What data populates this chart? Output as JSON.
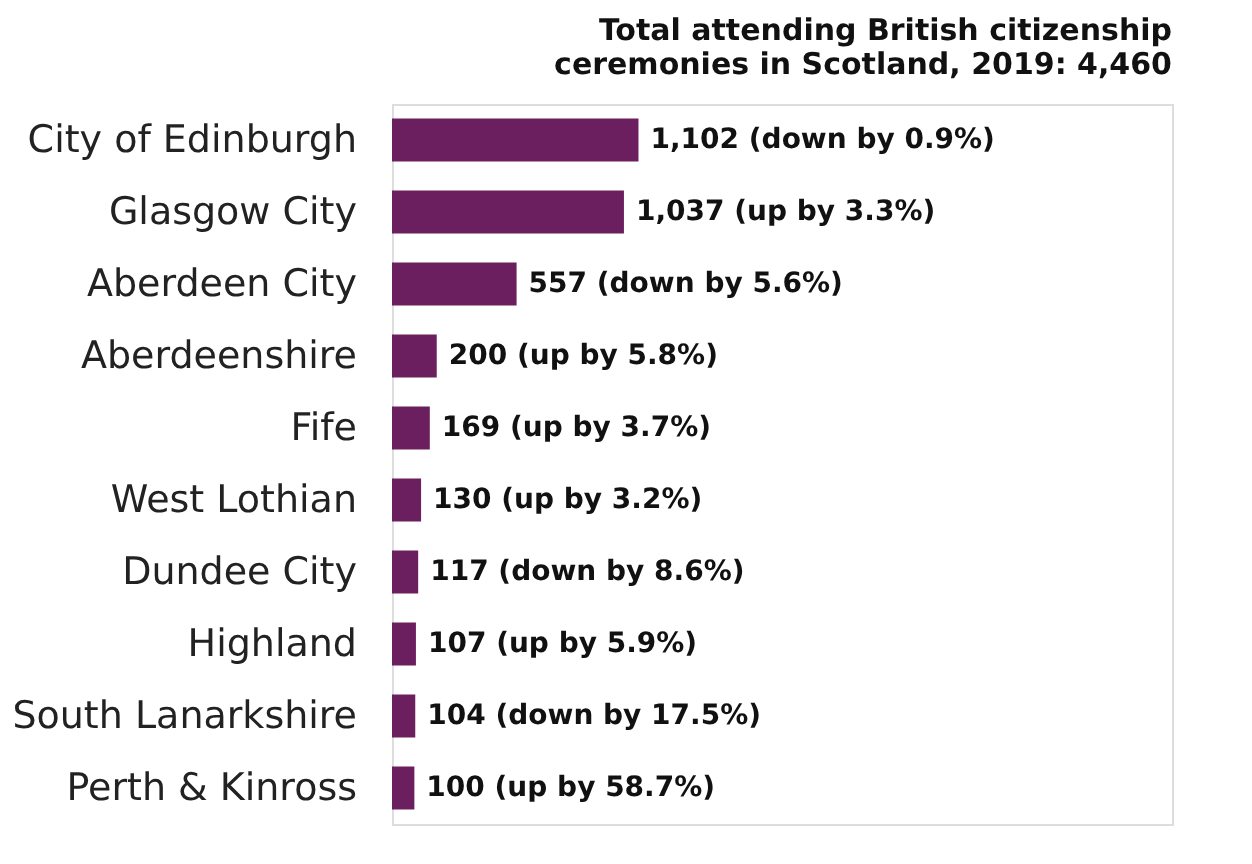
{
  "chart_data": {
    "type": "bar",
    "orientation": "horizontal",
    "title": "Total attending British citizenship\nceremonies in Scotland, 2019:  4,460",
    "categories": [
      "City of Edinburgh",
      "Glasgow City",
      "Aberdeen City",
      "Aberdeenshire",
      "Fife",
      "West Lothian",
      "Dundee City",
      "Highland",
      "South Lanarkshire",
      "Perth & Kinross"
    ],
    "values": [
      1102,
      1037,
      557,
      200,
      169,
      130,
      117,
      107,
      104,
      100
    ],
    "value_labels": [
      "1,102 (down by 0.9%)",
      "1,037 (up by 3.3%)",
      "557 (down by 5.6%)",
      "200 (up by 5.8%)",
      "169 (up by 3.7%)",
      "130 (up by 3.2%)",
      "117 (down by 8.6%)",
      "107 (up by 5.9%)",
      "104 (down by 17.5%)",
      "100 (up by 58.7%)"
    ],
    "color": "#6b1f5f"
  }
}
